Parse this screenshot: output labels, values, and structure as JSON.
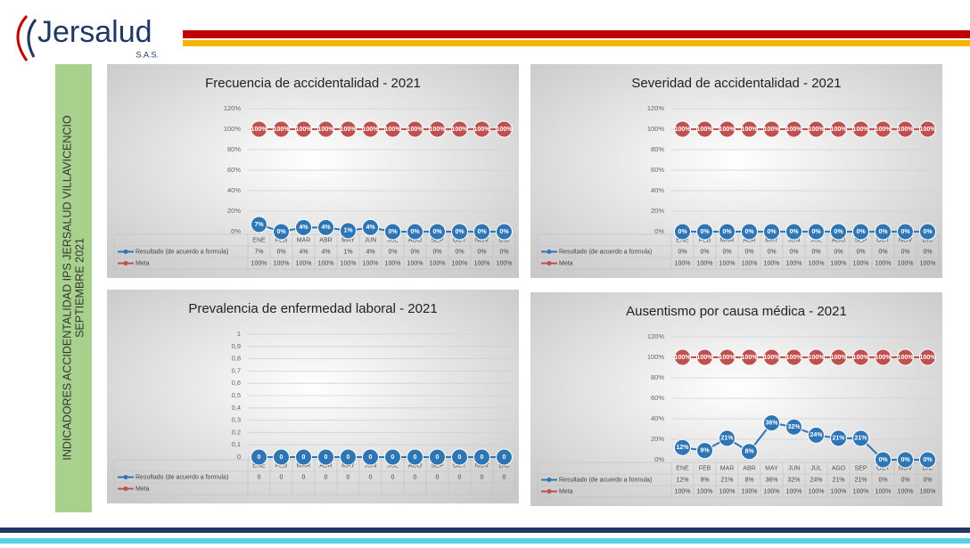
{
  "logo": {
    "name": "Jersalud",
    "suffix": "S.A.S."
  },
  "sidebar": {
    "lines": [
      "INDICADORES ACCIDENTALIDAD IPS JERSALUD VILLAVICENCIO",
      "SEPTIEMBRE 2021"
    ]
  },
  "chart_data": [
    {
      "type": "line",
      "title": "Frecuencia de accidentalidad -  2021",
      "categories": [
        "ENE",
        "FEB",
        "MAR",
        "ABR",
        "MAY",
        "JUN",
        "JUL",
        "AGO",
        "SEP",
        "OCT",
        "NOV",
        "DIC"
      ],
      "ylim": [
        0,
        120
      ],
      "yticks": [
        {
          "value": 0,
          "label": "0%"
        },
        {
          "value": 20,
          "label": "20%"
        },
        {
          "value": 40,
          "label": "40%"
        },
        {
          "value": 60,
          "label": "60%"
        },
        {
          "value": 80,
          "label": "80%"
        },
        {
          "value": 100,
          "label": "100%"
        },
        {
          "value": 120,
          "label": "120%"
        }
      ],
      "grid": true,
      "series": [
        {
          "name": "Resultado (de acuerdo a formula)",
          "color": "#2e75b6",
          "values": [
            7,
            0,
            4,
            4,
            1,
            4,
            0,
            0,
            0,
            0,
            0,
            0
          ],
          "value_labels": [
            "7%",
            "0%",
            "4%",
            "4%",
            "1%",
            "4%",
            "0%",
            "0%",
            "0%",
            "0%",
            "0%",
            "0%"
          ]
        },
        {
          "name": "Meta",
          "color": "#c0504d",
          "values": [
            100,
            100,
            100,
            100,
            100,
            100,
            100,
            100,
            100,
            100,
            100,
            100
          ],
          "value_labels": [
            "100%",
            "100%",
            "100%",
            "100%",
            "100%",
            "100%",
            "100%",
            "100%",
            "100%",
            "100%",
            "100%",
            "100%"
          ]
        }
      ]
    },
    {
      "type": "line",
      "title": "Severidad de accidentalidad -  2021",
      "categories": [
        "ENE",
        "FEB",
        "MAR",
        "ABR",
        "MAY",
        "JUN",
        "JUL",
        "AGO",
        "SEP",
        "OCT",
        "NOV",
        "DIC"
      ],
      "ylim": [
        0,
        120
      ],
      "yticks": [
        {
          "value": 0,
          "label": "0%"
        },
        {
          "value": 20,
          "label": "20%"
        },
        {
          "value": 40,
          "label": "40%"
        },
        {
          "value": 60,
          "label": "60%"
        },
        {
          "value": 80,
          "label": "80%"
        },
        {
          "value": 100,
          "label": "100%"
        },
        {
          "value": 120,
          "label": "120%"
        }
      ],
      "grid": true,
      "series": [
        {
          "name": "Resultado (de acuerdo a formula)",
          "color": "#2e75b6",
          "values": [
            0,
            0,
            0,
            0,
            0,
            0,
            0,
            0,
            0,
            0,
            0,
            0
          ],
          "value_labels": [
            "0%",
            "0%",
            "0%",
            "0%",
            "0%",
            "0%",
            "0%",
            "0%",
            "0%",
            "0%",
            "0%",
            "0%"
          ]
        },
        {
          "name": "Meta",
          "color": "#c0504d",
          "values": [
            100,
            100,
            100,
            100,
            100,
            100,
            100,
            100,
            100,
            100,
            100,
            100
          ],
          "value_labels": [
            "100%",
            "100%",
            "100%",
            "100%",
            "100%",
            "100%",
            "100%",
            "100%",
            "100%",
            "100%",
            "100%",
            "100%"
          ]
        }
      ]
    },
    {
      "type": "line",
      "title": "Prevalencia de enfermedad laboral  - 2021",
      "categories": [
        "ENE",
        "FEB",
        "MAR",
        "ABR",
        "MAY",
        "JUN",
        "JUL",
        "AGO",
        "SEP",
        "OCT",
        "NOV",
        "DIC"
      ],
      "ylim": [
        0,
        1
      ],
      "yticks": [
        0,
        {
          "value": 0.1,
          "label": "0,1"
        },
        {
          "value": 0.2,
          "label": "0,2"
        },
        {
          "value": 0.3,
          "label": "0,3"
        },
        {
          "value": 0.4,
          "label": "0,4"
        },
        {
          "value": 0.5,
          "label": "0,5"
        },
        {
          "value": 0.6,
          "label": "0,6"
        },
        {
          "value": 0.7,
          "label": "0,7"
        },
        {
          "value": 0.8,
          "label": "0,8"
        },
        {
          "value": 0.9,
          "label": "0,9"
        },
        1
      ],
      "grid": true,
      "series": [
        {
          "name": "Resultado (de acuerdo a formula)",
          "color": "#2e75b6",
          "values": [
            0,
            0,
            0,
            0,
            0,
            0,
            0,
            0,
            0,
            0,
            0,
            0
          ]
        },
        {
          "name": "Meta",
          "color": "#c0504d",
          "values": [
            null,
            null,
            null,
            null,
            null,
            null,
            null,
            null,
            null,
            null,
            null,
            null
          ]
        }
      ]
    },
    {
      "type": "line",
      "title": "Ausentismo por causa médica - 2021",
      "categories": [
        "ENE",
        "FEB",
        "MAR",
        "ABR",
        "MAY",
        "JUN",
        "JUL",
        "AGO",
        "SEP",
        "OCT",
        "NOV",
        "DIC"
      ],
      "ylim": [
        0,
        120
      ],
      "yticks": [
        {
          "value": 0,
          "label": "0%"
        },
        {
          "value": 20,
          "label": "20%"
        },
        {
          "value": 40,
          "label": "40%"
        },
        {
          "value": 60,
          "label": "60%"
        },
        {
          "value": 80,
          "label": "80%"
        },
        {
          "value": 100,
          "label": "100%"
        },
        {
          "value": 120,
          "label": "120%"
        }
      ],
      "grid": true,
      "series": [
        {
          "name": "Resultado (de acuerdo a formula)",
          "color": "#2e75b6",
          "values": [
            12,
            9,
            21,
            8,
            36,
            32,
            24,
            21,
            21,
            0,
            0,
            0
          ],
          "value_labels": [
            "12%",
            "9%",
            "21%",
            "8%",
            "36%",
            "32%",
            "24%",
            "21%",
            "21%",
            "0%",
            "0%",
            "0%"
          ]
        },
        {
          "name": "Meta",
          "color": "#c0504d",
          "values": [
            100,
            100,
            100,
            100,
            100,
            100,
            100,
            100,
            100,
            100,
            100,
            100
          ],
          "value_labels": [
            "100%",
            "100%",
            "100%",
            "100%",
            "100%",
            "100%",
            "100%",
            "100%",
            "100%",
            "100%",
            "100%",
            "100%"
          ]
        }
      ]
    }
  ]
}
